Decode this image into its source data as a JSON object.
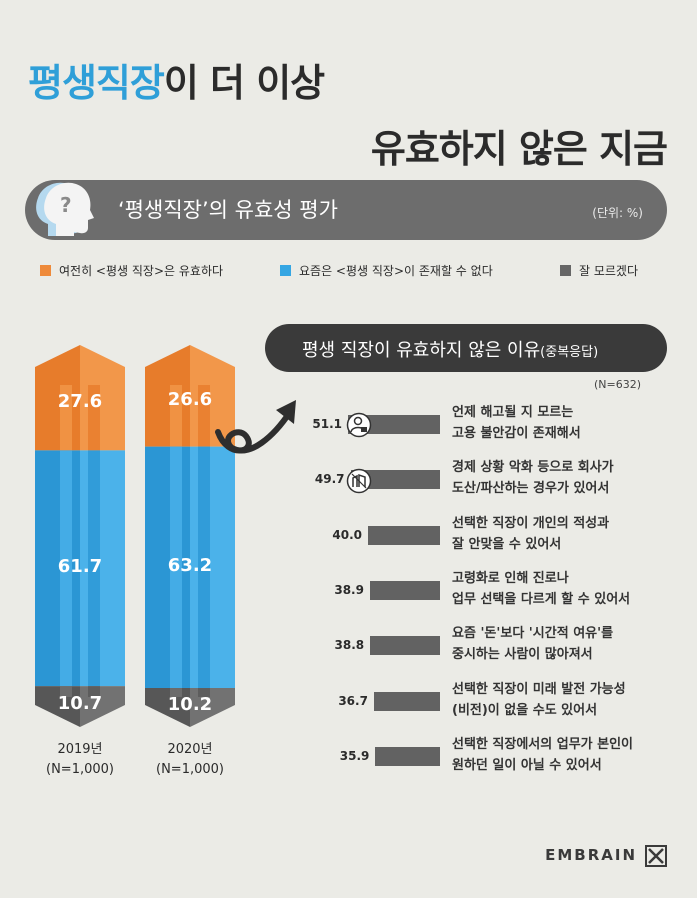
{
  "title": {
    "highlight": "평생직장",
    "rest1": "이 더 이상",
    "line2": "유효하지 않은 지금"
  },
  "banner": {
    "title": "‘평생직장’의 유효성 평가",
    "unit": "(단위: %)"
  },
  "legend": [
    {
      "label": "여전히 <평생 직장>은 유효하다",
      "color": "#ee8a3a"
    },
    {
      "label": "요즘은 <평생 직장>이 존재할 수 없다",
      "color": "#35a6e3"
    },
    {
      "label": "잘 모르겠다",
      "color": "#666666"
    }
  ],
  "reasons_header": {
    "title": "평생 직장이 유효하지 않은 이유",
    "sub": "(중복응답)",
    "n": "(N=632)"
  },
  "brand": "EMBRAIN",
  "chart_data": [
    {
      "type": "bar",
      "stacked": true,
      "categories": [
        "2019년",
        "2020년"
      ],
      "category_notes": [
        "(N=1,000)",
        "(N=1,000)"
      ],
      "series": [
        {
          "name": "여전히 <평생 직장>은 유효하다",
          "values": [
            27.6,
            26.6
          ],
          "labels": [
            "27.6",
            "26.6"
          ],
          "color": "#ee8a3a"
        },
        {
          "name": "요즘은 <평생 직장>이 존재할 수 없다",
          "values": [
            61.7,
            63.2
          ],
          "labels": [
            "61.7",
            "63.2"
          ],
          "color": "#35a6e3"
        },
        {
          "name": "잘 모르겠다",
          "values": [
            10.7,
            10.2
          ],
          "labels": [
            "10.7",
            "10.2"
          ],
          "color": "#666666"
        }
      ]
    },
    {
      "type": "bar",
      "orientation": "horizontal",
      "items": [
        {
          "value": 51.1,
          "label": "51.1",
          "line1": "언제 해고될 지 모르는",
          "line2": "고용 불안감이 존재해서"
        },
        {
          "value": 49.7,
          "label": "49.7",
          "line1": "경제 상황 악화 등으로 회사가",
          "line2": "도산/파산하는 경우가 있어서"
        },
        {
          "value": 40.0,
          "label": "40.0",
          "line1": "선택한 직장이 개인의 적성과",
          "line2": "잘 안맞을 수 있어서"
        },
        {
          "value": 38.9,
          "label": "38.9",
          "line1": "고령화로 인해 진로나",
          "line2": "업무 선택을 다르게 할 수 있어서"
        },
        {
          "value": 38.8,
          "label": "38.8",
          "line1": "요즘 '돈'보다 '시간적 여유'를",
          "line2": "중시하는 사람이 많아져서"
        },
        {
          "value": 36.7,
          "label": "36.7",
          "line1": "선택한 직장이 미래 발전 가능성",
          "line2": "(비전)이 없을 수도 있어서"
        },
        {
          "value": 35.9,
          "label": "35.9",
          "line1": "선택한 직장에서의 업무가 본인이",
          "line2": "원하던 일이 아닐 수 있어서"
        }
      ]
    }
  ]
}
